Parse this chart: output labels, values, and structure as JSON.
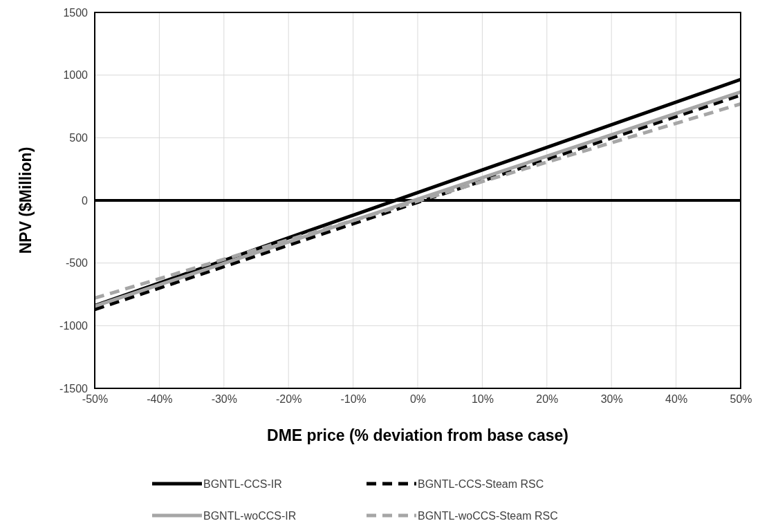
{
  "chart_data": {
    "type": "line",
    "xlabel": "DME price (% deviation from base case)",
    "ylabel": "NPV ($Million)",
    "x": [
      -50,
      50
    ],
    "xlim": [
      -50,
      50
    ],
    "xticks": [
      {
        "value": -50,
        "label": "-50%"
      },
      {
        "value": -40,
        "label": "-40%"
      },
      {
        "value": -30,
        "label": "-30%"
      },
      {
        "value": -20,
        "label": "-20%"
      },
      {
        "value": -10,
        "label": "-10%"
      },
      {
        "value": 0,
        "label": "0%"
      },
      {
        "value": 10,
        "label": "10%"
      },
      {
        "value": 20,
        "label": "20%"
      },
      {
        "value": 30,
        "label": "30%"
      },
      {
        "value": 40,
        "label": "40%"
      },
      {
        "value": 50,
        "label": "50%"
      }
    ],
    "ylim": [
      -1500,
      1500
    ],
    "yticks": [
      -1500,
      -1000,
      -500,
      0,
      500,
      1000,
      1500
    ],
    "grid": true,
    "legend": "bottom",
    "marker": "none",
    "ref_lines": [
      {
        "axis": "y",
        "value": 0,
        "color": "#000000"
      }
    ],
    "series": [
      {
        "name": "BGNTL-CCS-IR",
        "color": "#000000",
        "line_style": "solid",
        "values": [
          -840,
          965
        ]
      },
      {
        "name": "BGNTL-CCS-Steam RSC",
        "color": "#000000",
        "line_style": "dashed",
        "values": [
          -870,
          840
        ]
      },
      {
        "name": "BGNTL-woCCS-IR",
        "color": "#a6a6a6",
        "line_style": "solid",
        "values": [
          -845,
          865
        ]
      },
      {
        "name": "BGNTL-woCCS-Steam RSC",
        "color": "#a6a6a6",
        "line_style": "dashed",
        "values": [
          -780,
          770
        ]
      }
    ]
  }
}
